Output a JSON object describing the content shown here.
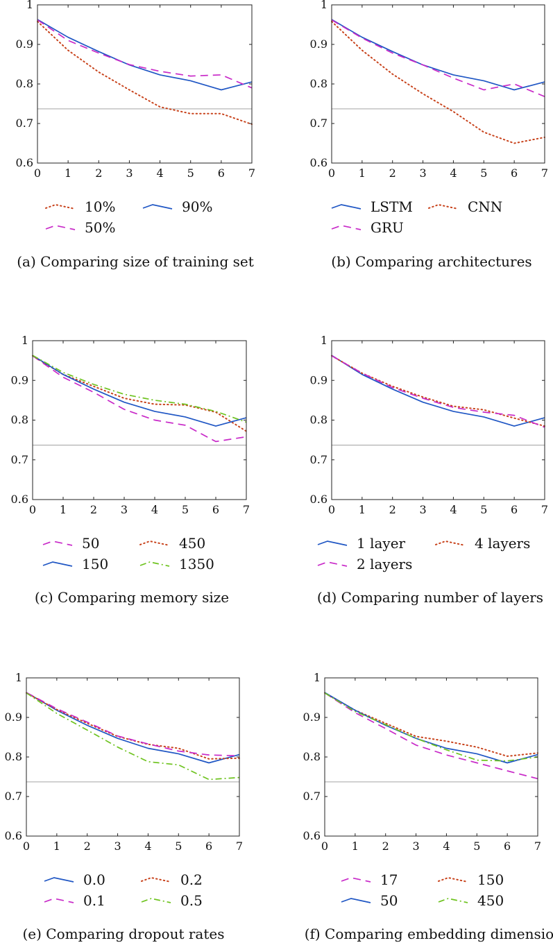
{
  "colors": {
    "LSTM": "#1f56c4",
    "GRU": "#c829c8",
    "CNN": "#c8431c",
    "green": "#6ec31f",
    "reference": "#b5b5b5",
    "axis": "#222222"
  },
  "chart_data": [
    {
      "type": "line",
      "caption": "(a) Comparing size of training set",
      "x": [
        0,
        1,
        2,
        3,
        4,
        5,
        6,
        7
      ],
      "xlim": [
        0,
        7
      ],
      "ylim": [
        0.6,
        1
      ],
      "xticks": [
        "0",
        "1",
        "2",
        "3",
        "4",
        "5",
        "6",
        "7"
      ],
      "yticks": [
        "0.6",
        "0.7",
        "0.8",
        "0.9",
        "1"
      ],
      "reference_line": 0.737,
      "legend_columns": 2,
      "series": [
        {
          "name": "10%",
          "style": "dotted",
          "color": "#c8431c",
          "values": [
            0.958,
            0.885,
            0.83,
            0.785,
            0.742,
            0.725,
            0.725,
            0.698
          ]
        },
        {
          "name": "90%",
          "style": "solid",
          "color": "#1f56c4",
          "values": [
            0.963,
            0.918,
            0.882,
            0.848,
            0.823,
            0.808,
            0.785,
            0.805
          ]
        },
        {
          "name": "50%",
          "style": "dashed",
          "color": "#c829c8",
          "values": [
            0.962,
            0.91,
            0.878,
            0.849,
            0.832,
            0.82,
            0.823,
            0.79
          ]
        }
      ]
    },
    {
      "type": "line",
      "caption": "(b) Comparing architectures",
      "x": [
        0,
        1,
        2,
        3,
        4,
        5,
        6,
        7
      ],
      "xlim": [
        0,
        7
      ],
      "ylim": [
        0.6,
        1
      ],
      "xticks": [
        "0",
        "1",
        "2",
        "3",
        "4",
        "5",
        "6",
        "7"
      ],
      "yticks": [
        "0.6",
        "0.7",
        "0.8",
        "0.9",
        "1"
      ],
      "reference_line": 0.737,
      "legend_columns": 2,
      "series": [
        {
          "name": "LSTM",
          "style": "solid",
          "color": "#1f56c4",
          "values": [
            0.963,
            0.918,
            0.882,
            0.848,
            0.823,
            0.808,
            0.785,
            0.805
          ]
        },
        {
          "name": "CNN",
          "style": "dotted",
          "color": "#c8431c",
          "values": [
            0.958,
            0.885,
            0.825,
            0.775,
            0.73,
            0.678,
            0.65,
            0.665
          ]
        },
        {
          "name": "GRU",
          "style": "dashed",
          "color": "#c829c8",
          "values": [
            0.962,
            0.916,
            0.878,
            0.848,
            0.815,
            0.785,
            0.8,
            0.768
          ]
        }
      ]
    },
    {
      "type": "line",
      "caption": "(c) Comparing memory size",
      "x": [
        0,
        1,
        2,
        3,
        4,
        5,
        6,
        7
      ],
      "xlim": [
        0,
        7
      ],
      "ylim": [
        0.6,
        1
      ],
      "xticks": [
        "0",
        "1",
        "2",
        "3",
        "4",
        "5",
        "6",
        "7"
      ],
      "yticks": [
        "0.6",
        "0.7",
        "0.8",
        "0.9",
        "1"
      ],
      "reference_line": 0.737,
      "legend_columns": 2,
      "series": [
        {
          "name": "50",
          "style": "dashed",
          "color": "#c829c8",
          "values": [
            0.962,
            0.908,
            0.87,
            0.827,
            0.8,
            0.787,
            0.746,
            0.758
          ]
        },
        {
          "name": "450",
          "style": "dotted",
          "color": "#c8431c",
          "values": [
            0.962,
            0.915,
            0.885,
            0.855,
            0.84,
            0.838,
            0.82,
            0.772
          ]
        },
        {
          "name": "150",
          "style": "solid",
          "color": "#1f56c4",
          "values": [
            0.963,
            0.915,
            0.878,
            0.845,
            0.822,
            0.808,
            0.785,
            0.806
          ]
        },
        {
          "name": "1350",
          "style": "dashdot",
          "color": "#6ec31f",
          "values": [
            0.963,
            0.92,
            0.89,
            0.865,
            0.85,
            0.84,
            0.822,
            0.795
          ]
        }
      ]
    },
    {
      "type": "line",
      "caption": "(d) Comparing number of layers",
      "x": [
        0,
        1,
        2,
        3,
        4,
        5,
        6,
        7
      ],
      "xlim": [
        0,
        7
      ],
      "ylim": [
        0.6,
        1
      ],
      "xticks": [
        "0",
        "1",
        "2",
        "3",
        "4",
        "5",
        "6",
        "7"
      ],
      "yticks": [
        "0.6",
        "0.7",
        "0.8",
        "0.9",
        "1"
      ],
      "reference_line": 0.737,
      "legend_columns": 2,
      "series": [
        {
          "name": "1 layer",
          "style": "solid",
          "color": "#1f56c4",
          "values": [
            0.963,
            0.915,
            0.878,
            0.845,
            0.822,
            0.808,
            0.785,
            0.806
          ]
        },
        {
          "name": "4 layers",
          "style": "dotted",
          "color": "#c8431c",
          "values": [
            0.962,
            0.918,
            0.885,
            0.858,
            0.835,
            0.826,
            0.805,
            0.785
          ]
        },
        {
          "name": "2 layers",
          "style": "dashed",
          "color": "#c829c8",
          "values": [
            0.962,
            0.918,
            0.882,
            0.855,
            0.832,
            0.82,
            0.812,
            0.782
          ]
        }
      ]
    },
    {
      "type": "line",
      "caption": "(e) Comparing dropout rates",
      "x": [
        0,
        1,
        2,
        3,
        4,
        5,
        6,
        7
      ],
      "xlim": [
        0,
        7
      ],
      "ylim": [
        0.6,
        1
      ],
      "xticks": [
        "0",
        "1",
        "2",
        "3",
        "4",
        "5",
        "6",
        "7"
      ],
      "yticks": [
        "0.6",
        "0.7",
        "0.8",
        "0.9",
        "1"
      ],
      "reference_line": 0.737,
      "legend_columns": 2,
      "series": [
        {
          "name": "0.0",
          "style": "solid",
          "color": "#1f56c4",
          "values": [
            0.963,
            0.918,
            0.88,
            0.847,
            0.822,
            0.808,
            0.785,
            0.806
          ]
        },
        {
          "name": "0.2",
          "style": "dotted",
          "color": "#c8431c",
          "values": [
            0.962,
            0.92,
            0.885,
            0.852,
            0.832,
            0.822,
            0.795,
            0.797
          ]
        },
        {
          "name": "0.1",
          "style": "dashed",
          "color": "#c829c8",
          "values": [
            0.963,
            0.922,
            0.888,
            0.853,
            0.833,
            0.815,
            0.805,
            0.803
          ]
        },
        {
          "name": "0.5",
          "style": "dashdot",
          "color": "#6ec31f",
          "values": [
            0.962,
            0.91,
            0.868,
            0.825,
            0.788,
            0.78,
            0.743,
            0.748
          ]
        }
      ]
    },
    {
      "type": "line",
      "caption": "(f) Comparing embedding dimensions",
      "x": [
        0,
        1,
        2,
        3,
        4,
        5,
        6,
        7
      ],
      "xlim": [
        0,
        7
      ],
      "ylim": [
        0.6,
        1
      ],
      "xticks": [
        "0",
        "1",
        "2",
        "3",
        "4",
        "5",
        "6",
        "7"
      ],
      "yticks": [
        "0.6",
        "0.7",
        "0.8",
        "0.9",
        "1"
      ],
      "reference_line": 0.737,
      "legend_columns": 2,
      "series": [
        {
          "name": "17",
          "style": "dashed",
          "color": "#c829c8",
          "values": [
            0.962,
            0.912,
            0.872,
            0.83,
            0.805,
            0.785,
            0.765,
            0.745
          ]
        },
        {
          "name": "150",
          "style": "dotted",
          "color": "#c8431c",
          "values": [
            0.962,
            0.918,
            0.885,
            0.852,
            0.84,
            0.825,
            0.802,
            0.81
          ]
        },
        {
          "name": "50",
          "style": "solid",
          "color": "#1f56c4",
          "values": [
            0.963,
            0.918,
            0.88,
            0.847,
            0.822,
            0.808,
            0.785,
            0.806
          ]
        },
        {
          "name": "450",
          "style": "dashdot",
          "color": "#6ec31f",
          "values": [
            0.962,
            0.915,
            0.882,
            0.847,
            0.818,
            0.792,
            0.79,
            0.8
          ]
        }
      ]
    }
  ]
}
